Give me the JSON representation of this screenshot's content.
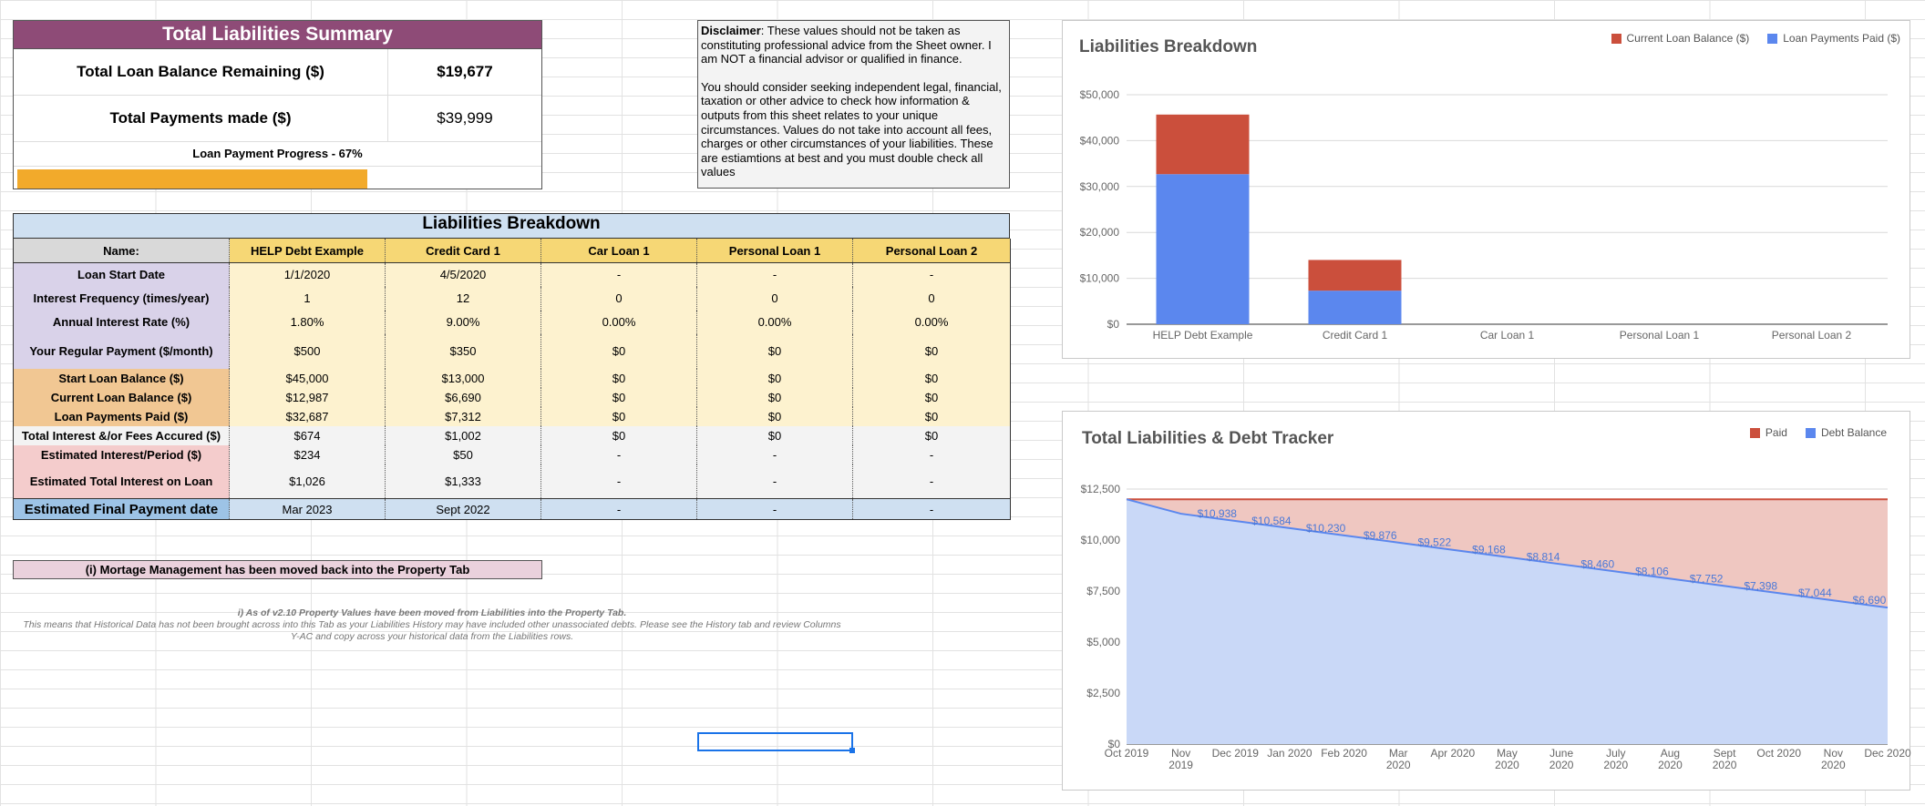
{
  "summary": {
    "title": "Total Liabilities Summary",
    "rows": [
      {
        "label": "Total Loan Balance Remaining ($)",
        "value": "$19,677"
      },
      {
        "label": "Total Payments made ($)",
        "value": "$39,999"
      }
    ],
    "progress_label": "Loan Payment Progress - 67%",
    "progress_fraction": 0.67,
    "progress_color": "#f2aa2b"
  },
  "disclaimer": {
    "bold": "Disclaimer",
    "text1": ": These values should not be taken as constituting professional advice from the Sheet owner. I am NOT a financial advisor or qualified in finance.",
    "text2": "You should consider seeking independent legal, financial, taxation or other advice to check how information & outputs from this sheet relates to your unique circumstances. Values do not take into account all fees, charges or other circumstances of your liabilities. These are estiamtions at best and you must double check all values"
  },
  "breakdown": {
    "title": "Liabilities Breakdown",
    "headers": [
      "Name:",
      "HELP Debt Example",
      "Credit Card 1",
      "Car Loan 1",
      "Personal Loan 1",
      "Personal Loan 2"
    ],
    "rows": [
      {
        "label": "Loan Start Date",
        "cells": [
          "1/1/2020",
          "4/5/2020",
          "-",
          "-",
          "-"
        ]
      },
      {
        "label": "Interest Frequency (times/year)",
        "cells": [
          "1",
          "12",
          "0",
          "0",
          "0"
        ]
      },
      {
        "label": "Annual Interest Rate (%)",
        "cells": [
          "1.80%",
          "9.00%",
          "0.00%",
          "0.00%",
          "0.00%"
        ]
      },
      {
        "label": "Your Regular Payment ($/month)",
        "cells": [
          "$500",
          "$350",
          "$0",
          "$0",
          "$0"
        ]
      },
      {
        "label": "Start Loan Balance ($)",
        "cells": [
          "$45,000",
          "$13,000",
          "$0",
          "$0",
          "$0"
        ]
      },
      {
        "label": "Current Loan Balance ($)",
        "cells": [
          "$12,987",
          "$6,690",
          "$0",
          "$0",
          "$0"
        ]
      },
      {
        "label": "Loan Payments Paid ($)",
        "cells": [
          "$32,687",
          "$7,312",
          "$0",
          "$0",
          "$0"
        ]
      },
      {
        "label": "Total Interest &/or Fees Accured ($)",
        "cells": [
          "$674",
          "$1,002",
          "$0",
          "$0",
          "$0"
        ]
      },
      {
        "label": "Estimated Interest/Period ($)",
        "cells": [
          "$234",
          "$50",
          "-",
          "-",
          "-"
        ]
      },
      {
        "label": "Estimated Total Interest on Loan",
        "cells": [
          "$1,026",
          "$1,333",
          "-",
          "-",
          "-"
        ]
      }
    ],
    "final_label": "Estimated Final Payment date",
    "final_cells": [
      "Mar  2023",
      "Sept 2022",
      "-",
      "-",
      "-"
    ]
  },
  "notes": {
    "mortgage": "(i) Mortage Management has been moved back into the Property Tab",
    "history_line1": "i) As of v2.10 Property Values have been moved from Liabilities into the Property Tab.",
    "history_line2": "This means that Historical Data has not been brought across into this Tab as your Liabilities History may have included other unassociated debts. Please see the History tab and review Columns Y-AC and copy across your historical data from the Liabilities rows."
  },
  "chart_data": [
    {
      "type": "bar",
      "stacked": true,
      "title": "Liabilities Breakdown",
      "categories": [
        "HELP Debt Example",
        "Credit Card 1",
        "Car Loan 1",
        "Personal Loan 1",
        "Personal Loan 2"
      ],
      "series": [
        {
          "name": "Loan Payments Paid ($)",
          "color": "#5b87ee",
          "values": [
            32687,
            7312,
            0,
            0,
            0
          ]
        },
        {
          "name": "Current Loan Balance ($)",
          "color": "#cb4f3c",
          "values": [
            12987,
            6690,
            0,
            0,
            0
          ]
        }
      ],
      "yticks": [
        "$0",
        "$10,000",
        "$20,000",
        "$30,000",
        "$40,000",
        "$50,000"
      ],
      "ylim": [
        0,
        50000
      ],
      "legend": "top-right",
      "grid": true
    },
    {
      "type": "area",
      "title": "Total Liabilities & Debt Tracker",
      "x": [
        "Oct 2019",
        "Nov 2019",
        "Dec 2019",
        "Jan 2020",
        "Feb 2020",
        "Mar 2020",
        "Apr 2020",
        "May 2020",
        "June 2020",
        "July 2020",
        "Aug 2020",
        "Sept 2020",
        "Oct 2020",
        "Nov 2020",
        "Dec 2020"
      ],
      "series": [
        {
          "name": "Debt Balance",
          "color": "#5b87ee",
          "fill": "#c9d8f7",
          "values": [
            12000,
            11292,
            10938,
            10584,
            10230,
            9876,
            9522,
            9168,
            8814,
            8460,
            8106,
            7752,
            7398,
            7044,
            6690
          ]
        },
        {
          "name": "Paid",
          "color": "#cb4f3c",
          "fill": "#efc7c1",
          "values": [
            12000,
            12000,
            12000,
            12000,
            12000,
            12000,
            12000,
            12000,
            12000,
            12000,
            12000,
            12000,
            12000,
            12000,
            12000
          ]
        }
      ],
      "labels": [
        "$10,938",
        "$10,584",
        "$10,230",
        "$9,876",
        "$9,522",
        "$9,168",
        "$8,814",
        "$8,460",
        "$8,106",
        "$7,752",
        "$7,398",
        "$7,044",
        "$6,690"
      ],
      "yticks": [
        "$0",
        "$2,500",
        "$5,000",
        "$7,500",
        "$10,000",
        "$12,500"
      ],
      "ylim": [
        0,
        12500
      ],
      "legend": "top-right",
      "legend_items": [
        "Paid",
        "Debt Balance"
      ],
      "grid": true
    }
  ]
}
